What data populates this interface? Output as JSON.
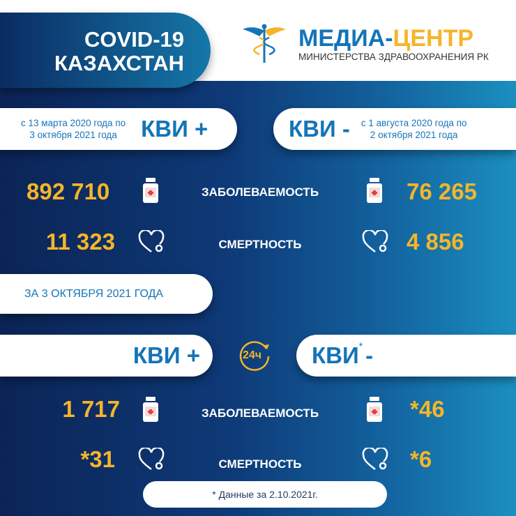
{
  "header": {
    "title_line1": "COVID-19",
    "title_line2": "КАЗАХСТАН",
    "brand_part1": "МЕДИА-",
    "brand_part2": "ЦЕНТР",
    "brand_subtitle": "МИНИСТЕРСТВА ЗДРАВООХРАНЕНИЯ РК",
    "logo_icon": "caduceus-icon"
  },
  "cumulative": {
    "positive": {
      "label": "КВИ +",
      "dates_line1": "с 13 марта 2020 года по",
      "dates_line2": "3 октября 2021 года",
      "cases": "892 710",
      "deaths": "11 323"
    },
    "negative": {
      "label": "КВИ -",
      "dates_line1": "с 1 августа 2020 года по",
      "dates_line2": "2 октября 2021 года",
      "cases": "76 265",
      "deaths": "4 856"
    }
  },
  "labels": {
    "cases": "ЗАБОЛЕВАЕМОСТЬ",
    "deaths": "СМЕРТНОСТЬ"
  },
  "daily": {
    "date_label": "ЗА 3 ОКТЯБРЯ 2021 ГОДА",
    "icon_text": "24ч",
    "positive": {
      "label": "КВИ +",
      "cases": "1 717",
      "deaths": "*31"
    },
    "negative": {
      "label": "КВИ",
      "asterisk": "*",
      "suffix": "-",
      "cases": "*46",
      "deaths": "*6"
    }
  },
  "footnote": "* Данные за 2.10.2021г.",
  "colors": {
    "accent": "#f5b52a",
    "brand_blue": "#1474b8",
    "navy": "#0b2456"
  }
}
